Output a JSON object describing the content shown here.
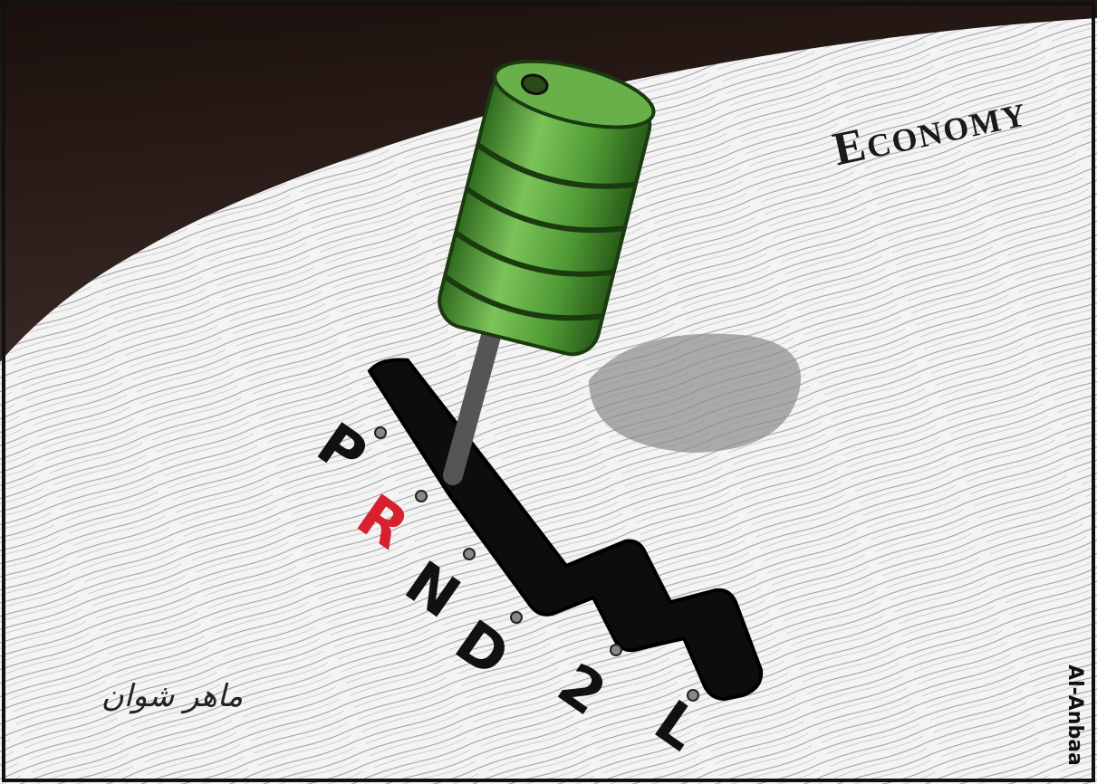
{
  "title": "Economy",
  "gears": [
    {
      "label": "P",
      "color": "#111111"
    },
    {
      "label": "R",
      "color": "#d8202f"
    },
    {
      "label": "N",
      "color": "#111111"
    },
    {
      "label": "D",
      "color": "#111111"
    },
    {
      "label": "2",
      "color": "#111111"
    },
    {
      "label": "L",
      "color": "#111111"
    }
  ],
  "signature": "ماهر شوان",
  "credit": "Al-Anbaa"
}
